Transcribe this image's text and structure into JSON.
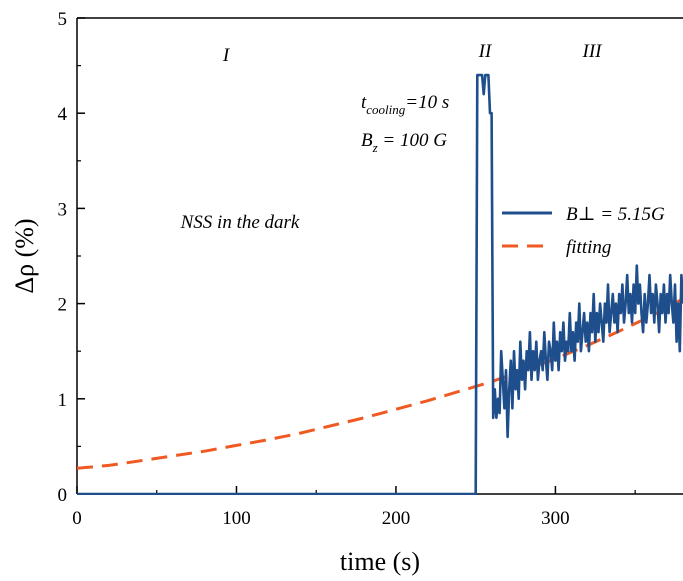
{
  "chart_data": {
    "type": "line",
    "xlabel": "time (s)",
    "ylabel": "Δρ (%)",
    "xlim": [
      0,
      380
    ],
    "ylim": [
      0,
      5
    ],
    "xticks": [
      0,
      100,
      200,
      300
    ],
    "yticks": [
      0,
      1,
      2,
      3,
      4,
      5
    ],
    "grid": false,
    "legend_position": "right",
    "annotations": {
      "region1": "I",
      "region2": "II",
      "region3": "III",
      "dark_label": "NSS in the dark",
      "cooling_t": "t",
      "cooling_sub": "cooling",
      "cooling_rest": "=10 s",
      "field_b": "B",
      "field_sub": "z",
      "field_rest": " = 100 G"
    },
    "legend": {
      "measured": "B⊥ = 5.15G",
      "fit": "fitting"
    },
    "colors": {
      "measured": "#1f4e8c",
      "fit": "#f05a22",
      "axis": "#000000"
    },
    "series": [
      {
        "name": "B⊥ = 5.15G",
        "style": "solid",
        "points": [
          [
            0,
            0
          ],
          [
            250,
            0
          ],
          [
            251,
            4.4
          ],
          [
            254,
            4.4
          ],
          [
            255,
            4.2
          ],
          [
            256,
            4.4
          ],
          [
            258,
            4.4
          ],
          [
            259,
            4.0
          ],
          [
            260,
            4.0
          ],
          [
            261,
            0.8
          ],
          [
            262,
            1.1
          ],
          [
            263,
            0.8
          ],
          [
            264,
            1.0
          ],
          [
            265,
            0.85
          ],
          [
            266,
            1.5
          ],
          [
            267,
            1.2
          ],
          [
            268,
            0.9
          ],
          [
            269,
            1.3
          ],
          [
            270,
            0.6
          ],
          [
            271,
            1.1
          ],
          [
            272,
            1.4
          ],
          [
            273,
            0.9
          ],
          [
            274,
            1.5
          ],
          [
            275,
            1.1
          ],
          [
            276,
            1.3
          ],
          [
            277,
            1.0
          ],
          [
            278,
            1.6
          ],
          [
            279,
            1.2
          ],
          [
            280,
            1.4
          ],
          [
            281,
            1.1
          ],
          [
            282,
            1.5
          ],
          [
            283,
            1.3
          ],
          [
            284,
            1.7
          ],
          [
            285,
            1.2
          ],
          [
            286,
            1.5
          ],
          [
            287,
            1.3
          ],
          [
            288,
            1.6
          ],
          [
            289,
            1.2
          ],
          [
            290,
            1.4
          ],
          [
            291,
            1.5
          ],
          [
            292,
            1.3
          ],
          [
            293,
            1.7
          ],
          [
            294,
            1.4
          ],
          [
            295,
            1.2
          ],
          [
            296,
            1.6
          ],
          [
            297,
            1.5
          ],
          [
            298,
            1.3
          ],
          [
            299,
            1.8
          ],
          [
            300,
            1.4
          ],
          [
            301,
            1.6
          ],
          [
            302,
            1.3
          ],
          [
            303,
            1.7
          ],
          [
            304,
            1.5
          ],
          [
            305,
            1.8
          ],
          [
            306,
            1.4
          ],
          [
            307,
            1.6
          ],
          [
            308,
            1.5
          ],
          [
            309,
            1.9
          ],
          [
            310,
            1.5
          ],
          [
            311,
            1.7
          ],
          [
            312,
            1.4
          ],
          [
            313,
            1.8
          ],
          [
            314,
            1.6
          ],
          [
            315,
            2.0
          ],
          [
            316,
            1.5
          ],
          [
            317,
            1.7
          ],
          [
            318,
            1.9
          ],
          [
            319,
            1.6
          ],
          [
            320,
            1.8
          ],
          [
            321,
            1.5
          ],
          [
            322,
            1.9
          ],
          [
            323,
            1.7
          ],
          [
            324,
            2.1
          ],
          [
            325,
            1.6
          ],
          [
            326,
            1.9
          ],
          [
            327,
            1.7
          ],
          [
            328,
            2.0
          ],
          [
            329,
            1.8
          ],
          [
            330,
            1.6
          ],
          [
            331,
            2.0
          ],
          [
            332,
            1.8
          ],
          [
            333,
            2.2
          ],
          [
            334,
            1.7
          ],
          [
            335,
            1.9
          ],
          [
            336,
            2.1
          ],
          [
            337,
            1.8
          ],
          [
            338,
            2.0
          ],
          [
            339,
            1.7
          ],
          [
            340,
            2.1
          ],
          [
            341,
            1.9
          ],
          [
            342,
            2.2
          ],
          [
            343,
            1.8
          ],
          [
            344,
            2.0
          ],
          [
            345,
            2.3
          ],
          [
            346,
            1.9
          ],
          [
            347,
            2.1
          ],
          [
            348,
            1.8
          ],
          [
            349,
            2.2
          ],
          [
            350,
            1.9
          ],
          [
            351,
            2.4
          ],
          [
            352,
            2.0
          ],
          [
            353,
            2.2
          ],
          [
            354,
            1.9
          ],
          [
            355,
            1.7
          ],
          [
            356,
            2.1
          ],
          [
            357,
            1.8
          ],
          [
            358,
            2.0
          ],
          [
            359,
            2.3
          ],
          [
            360,
            1.9
          ],
          [
            361,
            2.1
          ],
          [
            362,
            1.8
          ],
          [
            363,
            2.2
          ],
          [
            364,
            2.0
          ],
          [
            365,
            1.7
          ],
          [
            366,
            2.1
          ],
          [
            367,
            1.9
          ],
          [
            368,
            2.2
          ],
          [
            369,
            1.8
          ],
          [
            370,
            2.1
          ],
          [
            371,
            1.9
          ],
          [
            372,
            2.3
          ],
          [
            373,
            2.0
          ],
          [
            374,
            1.8
          ],
          [
            375,
            2.2
          ],
          [
            376,
            1.6
          ],
          [
            377,
            2.0
          ],
          [
            378,
            1.5
          ],
          [
            379,
            2.3
          ],
          [
            380,
            2.0
          ]
        ]
      },
      {
        "name": "fitting",
        "style": "dashed",
        "points": [
          [
            0,
            0.27
          ],
          [
            20,
            0.3
          ],
          [
            40,
            0.35
          ],
          [
            60,
            0.4
          ],
          [
            80,
            0.45
          ],
          [
            100,
            0.51
          ],
          [
            120,
            0.57
          ],
          [
            140,
            0.64
          ],
          [
            160,
            0.72
          ],
          [
            180,
            0.8
          ],
          [
            200,
            0.89
          ],
          [
            220,
            0.98
          ],
          [
            240,
            1.08
          ],
          [
            260,
            1.18
          ],
          [
            280,
            1.3
          ],
          [
            300,
            1.42
          ],
          [
            320,
            1.56
          ],
          [
            340,
            1.71
          ],
          [
            360,
            1.87
          ],
          [
            380,
            2.05
          ]
        ]
      }
    ]
  }
}
